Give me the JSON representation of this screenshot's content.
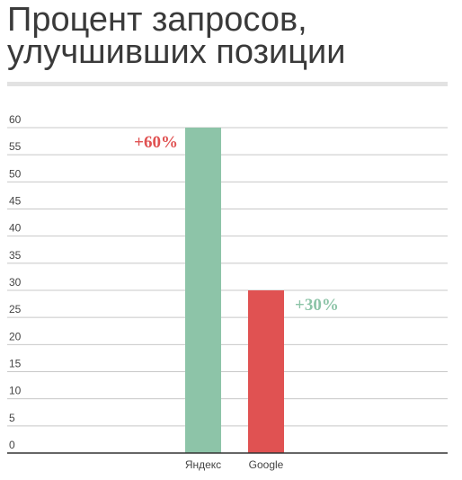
{
  "chart_data": {
    "type": "bar",
    "title": "Процент запросов, улучшивших позиции",
    "categories": [
      "Яндекс",
      "Google"
    ],
    "values": [
      60,
      30
    ],
    "value_labels": [
      "+60%",
      "+30%"
    ],
    "colors": [
      "#8dc4a8",
      "#e05252"
    ],
    "label_colors": [
      "#e05252",
      "#8dc4a8"
    ],
    "ylim": [
      0,
      60
    ],
    "yticks": [
      0,
      5,
      10,
      15,
      20,
      25,
      30,
      35,
      40,
      45,
      50,
      55,
      60
    ],
    "grid": true
  }
}
